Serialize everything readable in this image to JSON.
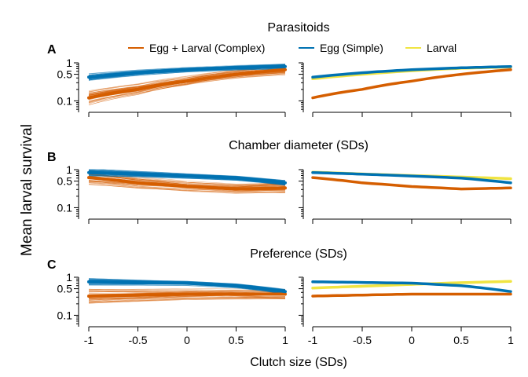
{
  "chart_data": {
    "type": "line",
    "title": "Parasitoids",
    "xlabel": "Clutch size (SDs)",
    "ylabel": "Mean larval survival",
    "xlim": [
      -1,
      1
    ],
    "ylim": [
      0.05,
      1
    ],
    "yscale": "log",
    "x_ticks": [
      "-1",
      "-0.5",
      "0",
      "0.5",
      "1"
    ],
    "y_ticks": [
      "0.1",
      "0.5",
      "1"
    ],
    "legend": {
      "placement": "top",
      "entries": [
        {
          "label": "Egg + Larval (Complex)",
          "color": "#D55E00"
        },
        {
          "label": "Egg (Simple)",
          "color": "#0072B2"
        },
        {
          "label": "Larval",
          "color": "#F0E442"
        }
      ]
    },
    "x": [
      -1,
      -0.5,
      0,
      0.5,
      1
    ],
    "rows": [
      {
        "letter": "A",
        "title": "",
        "series": [
          {
            "name": "Egg + Larval (Complex)",
            "color": "#D55E00",
            "values": [
              0.12,
              0.2,
              0.33,
              0.5,
              0.66
            ]
          },
          {
            "name": "Egg (Simple)",
            "color": "#0072B2",
            "values": [
              0.42,
              0.55,
              0.66,
              0.74,
              0.8
            ]
          },
          {
            "name": "Larval",
            "color": "#F0E442",
            "values": [
              0.38,
              0.5,
              0.62,
              0.72,
              0.78
            ]
          }
        ]
      },
      {
        "letter": "B",
        "title": "Chamber diameter (SDs)",
        "series": [
          {
            "name": "Egg + Larval (Complex)",
            "color": "#D55E00",
            "values": [
              0.62,
              0.45,
              0.36,
              0.31,
              0.33
            ]
          },
          {
            "name": "Egg (Simple)",
            "color": "#0072B2",
            "values": [
              0.84,
              0.76,
              0.68,
              0.6,
              0.45
            ]
          },
          {
            "name": "Larval",
            "color": "#F0E442",
            "values": [
              0.86,
              0.77,
              0.7,
              0.64,
              0.58
            ]
          }
        ]
      },
      {
        "letter": "C",
        "title": "Preference (SDs)",
        "series": [
          {
            "name": "Egg + Larval (Complex)",
            "color": "#D55E00",
            "values": [
              0.32,
              0.34,
              0.36,
              0.36,
              0.36
            ]
          },
          {
            "name": "Egg (Simple)",
            "color": "#0072B2",
            "values": [
              0.76,
              0.73,
              0.7,
              0.6,
              0.42
            ]
          },
          {
            "name": "Larval",
            "color": "#F0E442",
            "values": [
              0.52,
              0.58,
              0.65,
              0.72,
              0.78
            ]
          }
        ]
      }
    ]
  }
}
